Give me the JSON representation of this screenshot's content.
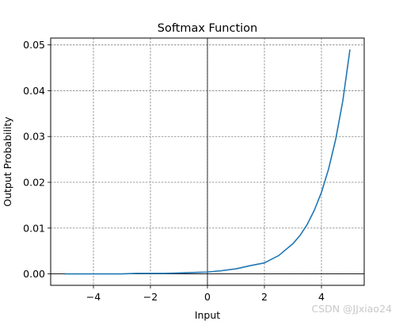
{
  "watermark": "CSDN @JJxiao24",
  "colors": {
    "line": "#1f77b4",
    "grid": "#808080",
    "axis": "#000000",
    "background": "#ffffff"
  },
  "chart_data": {
    "type": "line",
    "title": "Softmax Function",
    "xlabel": "Input",
    "ylabel": "Output Probability",
    "xlim": [
      -5.5,
      5.5
    ],
    "ylim": [
      -0.0025,
      0.0515
    ],
    "xticks": [
      -4,
      -2,
      0,
      2,
      4
    ],
    "xtick_labels": [
      "−4",
      "−2",
      "0",
      "2",
      "4"
    ],
    "yticks": [
      0.0,
      0.01,
      0.02,
      0.03,
      0.04,
      0.05
    ],
    "ytick_labels": [
      "0.00",
      "0.01",
      "0.02",
      "0.03",
      "0.04",
      "0.05"
    ],
    "grid": true,
    "grid_style": "dashed",
    "zero_lines": true,
    "legend": false,
    "series": [
      {
        "x": [
          -5.0,
          -4.5,
          -4.0,
          -3.5,
          -3.0,
          -2.5,
          -2.0,
          -1.5,
          -1.0,
          -0.5,
          0.0,
          0.5,
          1.0,
          1.5,
          2.0,
          2.5,
          3.0,
          3.25,
          3.5,
          3.75,
          4.0,
          4.25,
          4.5,
          4.75,
          5.0
        ],
        "values": [
          0.0,
          0.0,
          0.0,
          0.0,
          0.0,
          0.0001,
          0.0001,
          0.0001,
          0.0002,
          0.0003,
          0.0004,
          0.0007,
          0.0011,
          0.0018,
          0.0024,
          0.004,
          0.0066,
          0.0084,
          0.0108,
          0.0139,
          0.0178,
          0.0229,
          0.0294,
          0.0378,
          0.049
        ]
      }
    ]
  }
}
